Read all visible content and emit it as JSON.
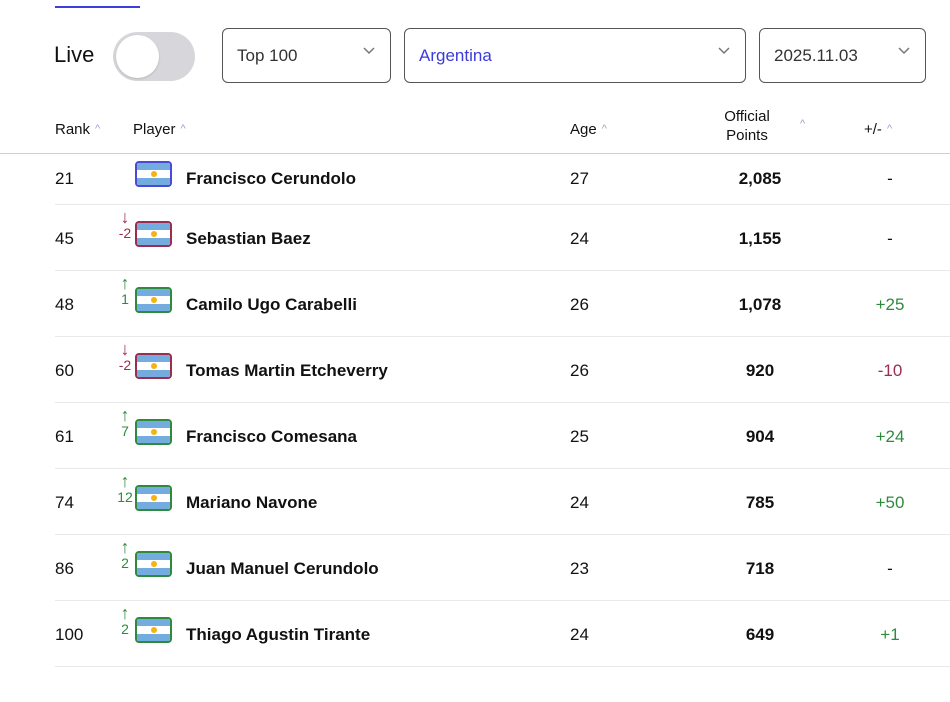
{
  "controls": {
    "live_label": "Live",
    "top_select": "Top 100",
    "country_select": "Argentina",
    "date_select": "2025.11.03"
  },
  "colors": {
    "accent": "#3d3de0",
    "up": "#2e8b3e",
    "down": "#9b2d4e"
  },
  "table": {
    "headers": {
      "rank": "Rank",
      "player": "Player",
      "age": "Age",
      "points_line1": "Official",
      "points_line2": "Points",
      "diff": "+/-"
    },
    "rows": [
      {
        "rank": "21",
        "move": "",
        "dir": "none",
        "name": "Francisco Cerundolo",
        "age": "27",
        "points": "2,085",
        "diff": "-",
        "diff_type": "neu"
      },
      {
        "rank": "45",
        "move": "-2",
        "dir": "down",
        "name": "Sebastian Baez",
        "age": "24",
        "points": "1,155",
        "diff": "-",
        "diff_type": "neu"
      },
      {
        "rank": "48",
        "move": "1",
        "dir": "up",
        "name": "Camilo Ugo Carabelli",
        "age": "26",
        "points": "1,078",
        "diff": "+25",
        "diff_type": "pos"
      },
      {
        "rank": "60",
        "move": "-2",
        "dir": "down",
        "name": "Tomas Martin Etcheverry",
        "age": "26",
        "points": "920",
        "diff": "-10",
        "diff_type": "neg"
      },
      {
        "rank": "61",
        "move": "7",
        "dir": "up",
        "name": "Francisco Comesana",
        "age": "25",
        "points": "904",
        "diff": "+24",
        "diff_type": "pos"
      },
      {
        "rank": "74",
        "move": "12",
        "dir": "up",
        "name": "Mariano Navone",
        "age": "24",
        "points": "785",
        "diff": "+50",
        "diff_type": "pos"
      },
      {
        "rank": "86",
        "move": "2",
        "dir": "up",
        "name": "Juan Manuel Cerundolo",
        "age": "23",
        "points": "718",
        "diff": "-",
        "diff_type": "neu"
      },
      {
        "rank": "100",
        "move": "2",
        "dir": "up",
        "name": "Thiago Agustin Tirante",
        "age": "24",
        "points": "649",
        "diff": "+1",
        "diff_type": "pos"
      }
    ]
  }
}
